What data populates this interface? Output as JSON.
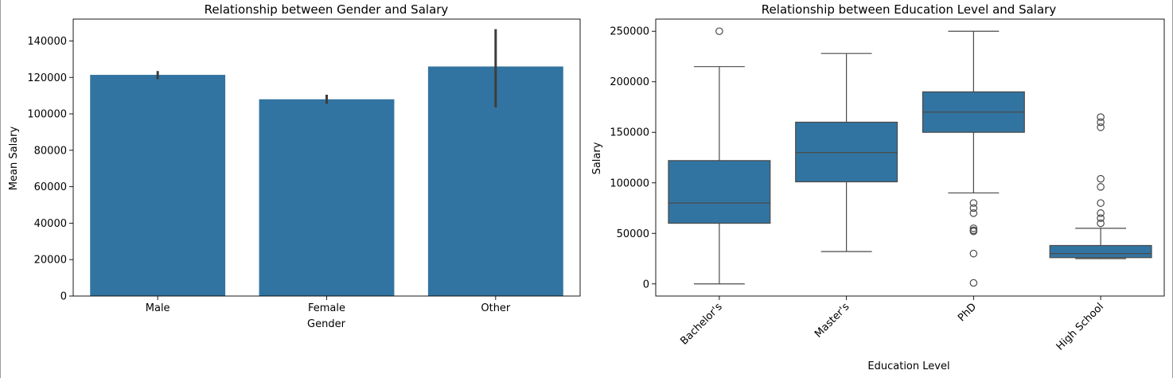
{
  "colors": {
    "bar_fill": "#3274a1",
    "box_fill": "#3274a1",
    "line": "#4a4a4a",
    "error_bar": "#3d3d3d",
    "axis": "#000000"
  },
  "chart_data": [
    {
      "type": "bar",
      "title": "Relationship between Gender and Salary",
      "xlabel": "Gender",
      "ylabel": "Mean Salary",
      "categories": [
        "Male",
        "Female",
        "Other"
      ],
      "values": [
        121400,
        108000,
        126000
      ],
      "error_bars": [
        [
          119000,
          123500
        ],
        [
          105500,
          110500
        ],
        [
          103500,
          146500
        ]
      ],
      "ylim": [
        0,
        152000
      ],
      "yticks": [
        0,
        20000,
        40000,
        60000,
        80000,
        100000,
        120000,
        140000
      ],
      "grid": false
    },
    {
      "type": "box",
      "title": "Relationship between Education Level and Salary",
      "xlabel": "Education Level",
      "ylabel": "Salary",
      "categories": [
        "Bachelor's",
        "Master's",
        "PhD",
        "High School"
      ],
      "boxes": [
        {
          "whisker_low": 0,
          "q1": 60000,
          "median": 80000,
          "q3": 122000,
          "whisker_high": 215000,
          "outliers": [
            250000
          ]
        },
        {
          "whisker_low": 32000,
          "q1": 101000,
          "median": 130000,
          "q3": 160000,
          "whisker_high": 228000,
          "outliers": []
        },
        {
          "whisker_low": 90000,
          "q1": 150000,
          "median": 170000,
          "q3": 190000,
          "whisker_high": 250000,
          "outliers": [
            80000,
            75000,
            70000,
            55000,
            53000,
            52000,
            30000,
            1000
          ]
        },
        {
          "whisker_low": 25000,
          "q1": 26000,
          "median": 30000,
          "q3": 38000,
          "whisker_high": 55000,
          "outliers": [
            60000,
            65000,
            70000,
            80000,
            96000,
            104000,
            155000,
            160000,
            165000
          ]
        }
      ],
      "ylim": [
        -12000,
        262000
      ],
      "yticks": [
        0,
        50000,
        100000,
        150000,
        200000,
        250000
      ],
      "grid": false
    }
  ]
}
